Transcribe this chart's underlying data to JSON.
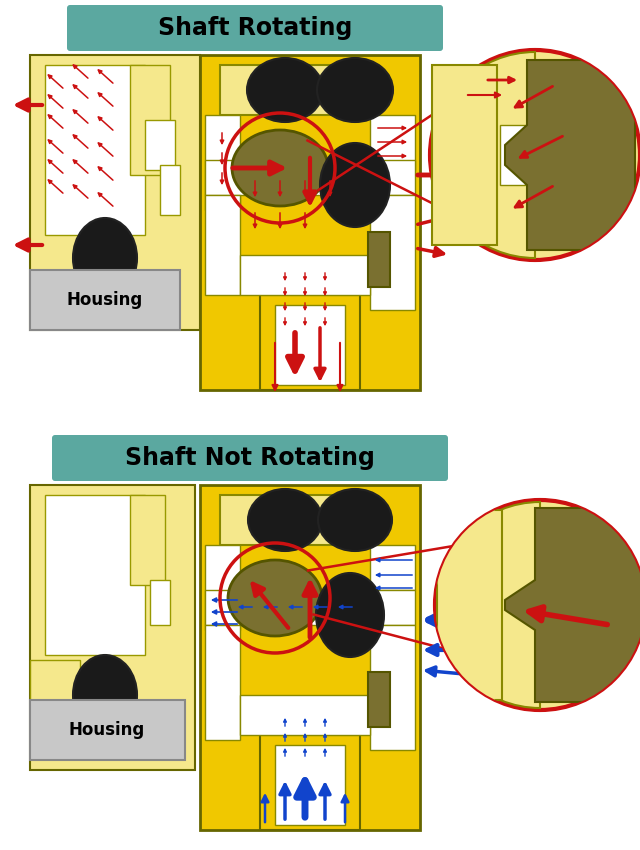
{
  "title1": "Shaft Rotating",
  "title2": "Shaft Not Rotating",
  "title_bg": "#5BA8A0",
  "title_fontsize": 17,
  "title_fontweight": "bold",
  "bg_color": "#FFFFFF",
  "lc": "#F5E88C",
  "dc": "#F0C800",
  "wc": "#FFFFFF",
  "bc": "#1A1A1A",
  "sc": "#7A7030",
  "housing_label_bg": "#C8C8C8",
  "red": "#CC1111",
  "blue": "#1144CC",
  "zc": "#CC1111",
  "zc_lw": 3.0
}
